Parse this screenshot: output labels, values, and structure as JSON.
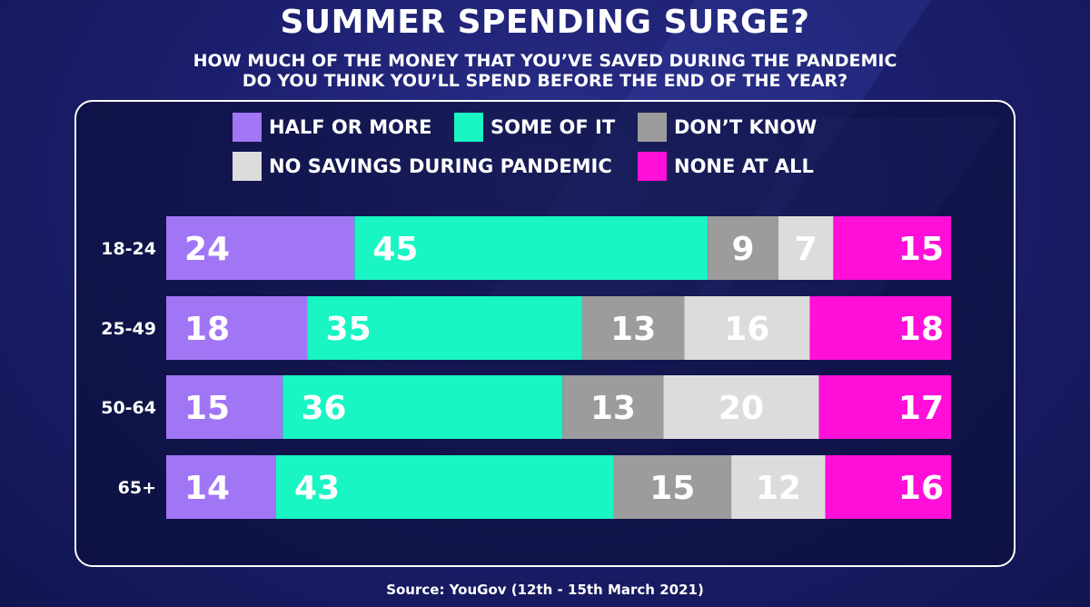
{
  "title": "SUMMER SPENDING SURGE?",
  "subtitle_line1": "HOW MUCH OF THE MONEY THAT YOU’VE SAVED DURING THE PANDEMIC",
  "subtitle_line2": "DO YOU THINK YOU’LL SPEND BEFORE THE END OF THE YEAR?",
  "source": "Source: YouGov (12th - 15th March 2021)",
  "colors": {
    "half_or_more": "#a176f5",
    "some_of_it": "#1af5c4",
    "dont_know": "#9c9c9c",
    "no_savings": "#dcdcdc",
    "none_at_all": "#ff0fd7"
  },
  "legend": {
    "half_or_more": "HALF OR MORE",
    "some_of_it": "SOME OF IT",
    "dont_know": "DON’T KNOW",
    "no_savings": "NO SAVINGS DURING PANDEMIC",
    "none_at_all": "NONE AT ALL"
  },
  "chart_data": {
    "type": "bar",
    "orientation": "horizontal",
    "stacked": true,
    "legend_position": "top",
    "grid": false,
    "categories": [
      "18-24",
      "25-49",
      "50-64",
      "65+"
    ],
    "series": [
      {
        "name": "HALF OR MORE",
        "color": "#a176f5",
        "values": [
          24,
          18,
          15,
          14
        ]
      },
      {
        "name": "SOME OF IT",
        "color": "#1af5c4",
        "values": [
          45,
          35,
          36,
          43
        ]
      },
      {
        "name": "DON’T KNOW",
        "color": "#9c9c9c",
        "values": [
          9,
          13,
          13,
          15
        ]
      },
      {
        "name": "NO SAVINGS DURING PANDEMIC",
        "color": "#dcdcdc",
        "values": [
          7,
          16,
          20,
          12
        ]
      },
      {
        "name": "NONE AT ALL",
        "color": "#ff0fd7",
        "values": [
          15,
          18,
          17,
          16
        ]
      }
    ]
  }
}
